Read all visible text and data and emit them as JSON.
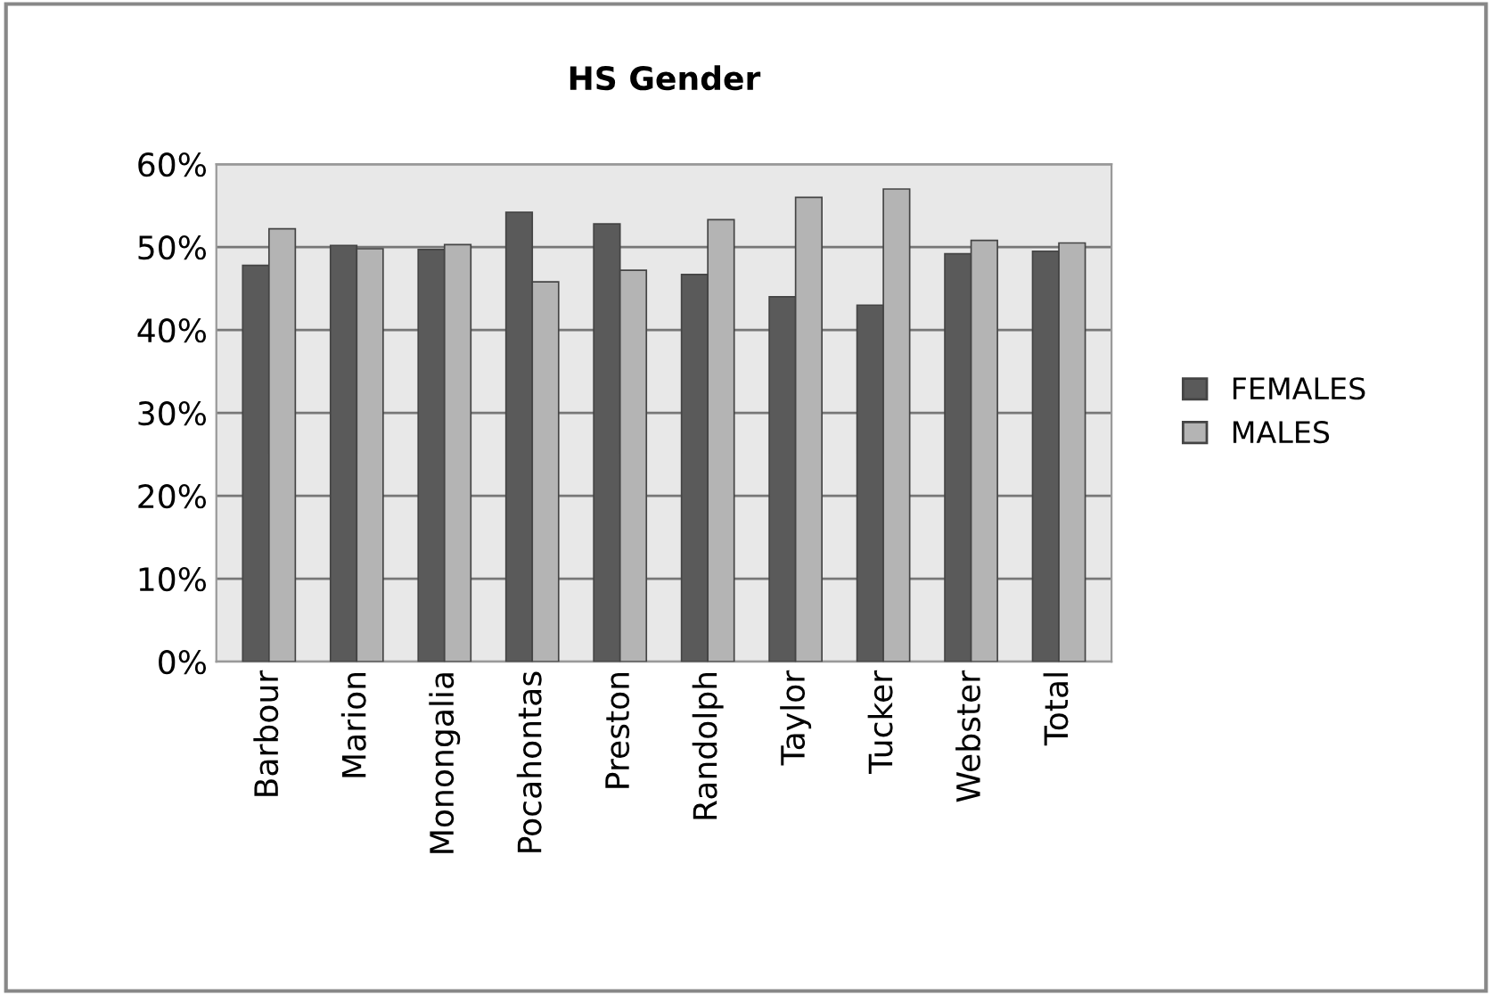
{
  "chart_data": {
    "type": "bar",
    "title": "HS Gender",
    "categories": [
      "Barbour",
      "Marion",
      "Monongalia",
      "Pocahontas",
      "Preston",
      "Randolph",
      "Taylor",
      "Tucker",
      "Webster",
      "Total"
    ],
    "series": [
      {
        "name": "FEMALES",
        "color": "#5a5a5a",
        "values": [
          47.8,
          50.2,
          49.7,
          54.2,
          52.8,
          46.7,
          44,
          43,
          49.2,
          49.5
        ]
      },
      {
        "name": "MALES",
        "color": "#b4b4b4",
        "values": [
          52.2,
          49.8,
          50.3,
          45.8,
          47.2,
          53.3,
          56,
          57,
          50.8,
          50.5
        ]
      }
    ],
    "ylim": [
      0,
      60
    ],
    "yticks": [
      {
        "value": 0,
        "label": "0%"
      },
      {
        "value": 10,
        "label": "10%"
      },
      {
        "value": 20,
        "label": "20%"
      },
      {
        "value": 30,
        "label": "30%"
      },
      {
        "value": 40,
        "label": "40%"
      },
      {
        "value": 50,
        "label": "50%"
      },
      {
        "value": 60,
        "label": "60%"
      }
    ],
    "grid": "y",
    "legend": "right"
  }
}
